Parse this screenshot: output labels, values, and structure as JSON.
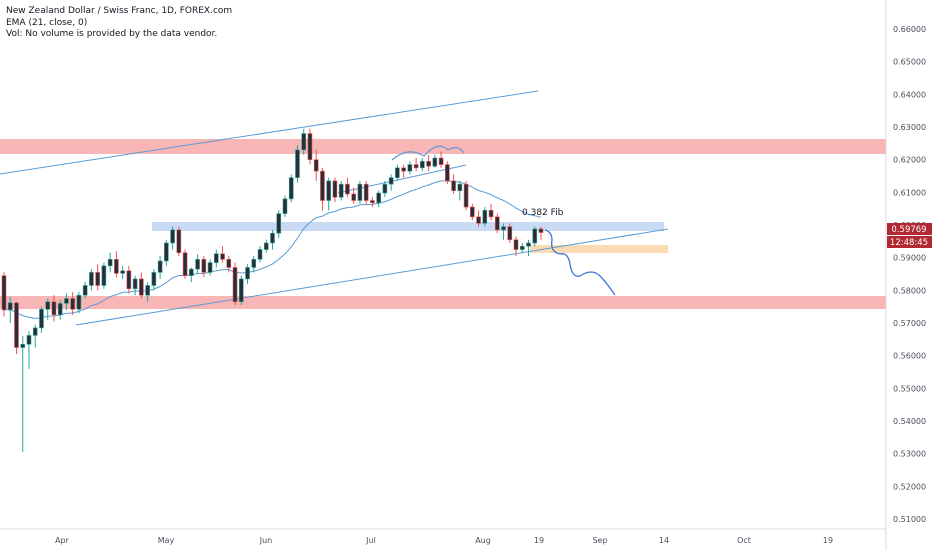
{
  "legend": {
    "title": "New Zealand Dollar / Swiss Franc, 1D, FOREX.com",
    "ema": "EMA (21, close, 0)",
    "vol": "Vol: No volume is provided by the data vendor."
  },
  "colors": {
    "up": "#26a69a",
    "down": "#ef5350",
    "candle_body": "#2a2e39",
    "red_zone": "#f7a9a9",
    "blue_zone": "#c3d6f3",
    "orange_zone": "#fad9b0",
    "line": "#5b9bd5",
    "price_tag": "#b22833"
  },
  "chart_data": {
    "type": "candlestick",
    "y_ticks": [
      "0.66000",
      "0.65000",
      "0.64000",
      "0.63000",
      "0.62000",
      "0.61000",
      "0.60000",
      "0.59000",
      "0.58000",
      "0.57000",
      "0.56000",
      "0.55000",
      "0.54000",
      "0.53000",
      "0.52000",
      "0.51000"
    ],
    "x_ticks": [
      "Apr",
      "May",
      "Jun",
      "Jul",
      "Aug",
      "19",
      "Sep",
      "14",
      "Oct",
      "19"
    ],
    "ylim": [
      0.5065,
      0.6675
    ],
    "last_price": "0.59769",
    "countdown": "12:48:45",
    "annotation": "0.382 Fib",
    "ema_period": 21,
    "candles": [
      [
        0.5845,
        0.5856,
        0.572,
        0.574
      ],
      [
        0.574,
        0.578,
        0.57,
        0.5762
      ],
      [
        0.5762,
        0.5765,
        0.5605,
        0.5625
      ],
      [
        0.5625,
        0.566,
        0.5305,
        0.5635
      ],
      [
        0.5635,
        0.5675,
        0.556,
        0.5662
      ],
      [
        0.5662,
        0.5695,
        0.5625,
        0.5685
      ],
      [
        0.5685,
        0.575,
        0.567,
        0.5742
      ],
      [
        0.5742,
        0.5775,
        0.571,
        0.5765
      ],
      [
        0.5765,
        0.5785,
        0.5705,
        0.5725
      ],
      [
        0.5725,
        0.577,
        0.571,
        0.576
      ],
      [
        0.576,
        0.579,
        0.574,
        0.5775
      ],
      [
        0.5775,
        0.5795,
        0.5725,
        0.5742
      ],
      [
        0.5742,
        0.5795,
        0.573,
        0.5785
      ],
      [
        0.5785,
        0.5825,
        0.5775,
        0.5815
      ],
      [
        0.5815,
        0.5865,
        0.58,
        0.5855
      ],
      [
        0.5855,
        0.588,
        0.58,
        0.5815
      ],
      [
        0.5815,
        0.5885,
        0.5805,
        0.5875
      ],
      [
        0.5875,
        0.5915,
        0.5855,
        0.5895
      ],
      [
        0.5895,
        0.592,
        0.584,
        0.5852
      ],
      [
        0.5852,
        0.5875,
        0.5835,
        0.586
      ],
      [
        0.586,
        0.5875,
        0.579,
        0.5805
      ],
      [
        0.5805,
        0.5845,
        0.5785,
        0.5835
      ],
      [
        0.5835,
        0.5855,
        0.5775,
        0.5785
      ],
      [
        0.5785,
        0.5825,
        0.5765,
        0.5815
      ],
      [
        0.5815,
        0.5865,
        0.58,
        0.5855
      ],
      [
        0.5855,
        0.5905,
        0.5835,
        0.589
      ],
      [
        0.589,
        0.5955,
        0.5875,
        0.5945
      ],
      [
        0.5945,
        0.5995,
        0.5925,
        0.5985
      ],
      [
        0.5985,
        0.5995,
        0.5905,
        0.5915
      ],
      [
        0.5915,
        0.5925,
        0.5835,
        0.5845
      ],
      [
        0.5845,
        0.587,
        0.5825,
        0.5865
      ],
      [
        0.5865,
        0.591,
        0.585,
        0.5895
      ],
      [
        0.5895,
        0.5905,
        0.584,
        0.5855
      ],
      [
        0.5855,
        0.5895,
        0.5845,
        0.5885
      ],
      [
        0.5885,
        0.5925,
        0.587,
        0.5912
      ],
      [
        0.5912,
        0.5935,
        0.5885,
        0.5895
      ],
      [
        0.5895,
        0.5905,
        0.5855,
        0.587
      ],
      [
        0.587,
        0.5885,
        0.5755,
        0.5765
      ],
      [
        0.5765,
        0.5845,
        0.5755,
        0.5835
      ],
      [
        0.5835,
        0.588,
        0.582,
        0.587
      ],
      [
        0.587,
        0.5905,
        0.5855,
        0.5895
      ],
      [
        0.5895,
        0.5935,
        0.5885,
        0.5925
      ],
      [
        0.5925,
        0.5955,
        0.5915,
        0.5945
      ],
      [
        0.5945,
        0.5985,
        0.5925,
        0.5975
      ],
      [
        0.5975,
        0.6045,
        0.596,
        0.6035
      ],
      [
        0.6035,
        0.609,
        0.6025,
        0.608
      ],
      [
        0.608,
        0.6155,
        0.607,
        0.6145
      ],
      [
        0.6145,
        0.6245,
        0.613,
        0.623
      ],
      [
        0.623,
        0.6295,
        0.6215,
        0.628
      ],
      [
        0.628,
        0.6295,
        0.6185,
        0.62
      ],
      [
        0.62,
        0.623,
        0.6135,
        0.6165
      ],
      [
        0.6165,
        0.6175,
        0.6045,
        0.6075
      ],
      [
        0.6075,
        0.6145,
        0.6045,
        0.6135
      ],
      [
        0.6135,
        0.6145,
        0.607,
        0.6085
      ],
      [
        0.6085,
        0.6135,
        0.6075,
        0.6125
      ],
      [
        0.6125,
        0.6145,
        0.6085,
        0.6095
      ],
      [
        0.6095,
        0.6115,
        0.6065,
        0.6075
      ],
      [
        0.6075,
        0.6135,
        0.6065,
        0.6125
      ],
      [
        0.6125,
        0.6135,
        0.6065,
        0.6075
      ],
      [
        0.6075,
        0.6085,
        0.6055,
        0.6068
      ],
      [
        0.6068,
        0.6105,
        0.6055,
        0.6098
      ],
      [
        0.6098,
        0.6135,
        0.6085,
        0.6125
      ],
      [
        0.6125,
        0.6155,
        0.6105,
        0.6145
      ],
      [
        0.6145,
        0.6185,
        0.6135,
        0.6175
      ],
      [
        0.6175,
        0.6185,
        0.6145,
        0.6165
      ],
      [
        0.6165,
        0.6195,
        0.6155,
        0.6185
      ],
      [
        0.6185,
        0.6205,
        0.6165,
        0.6175
      ],
      [
        0.6175,
        0.6205,
        0.6165,
        0.6195
      ],
      [
        0.6195,
        0.6215,
        0.6165,
        0.618
      ],
      [
        0.618,
        0.6215,
        0.6175,
        0.6205
      ],
      [
        0.6205,
        0.6225,
        0.6175,
        0.6185
      ],
      [
        0.6185,
        0.6195,
        0.6125,
        0.6135
      ],
      [
        0.6135,
        0.6155,
        0.6095,
        0.6105
      ],
      [
        0.6105,
        0.6135,
        0.6075,
        0.6125
      ],
      [
        0.6125,
        0.6135,
        0.6045,
        0.6055
      ],
      [
        0.6055,
        0.6065,
        0.6015,
        0.6025
      ],
      [
        0.6025,
        0.6045,
        0.5995,
        0.6005
      ],
      [
        0.6005,
        0.6055,
        0.5995,
        0.6045
      ],
      [
        0.6045,
        0.6065,
        0.6015,
        0.6025
      ],
      [
        0.6025,
        0.6035,
        0.5975,
        0.5985
      ],
      [
        0.5985,
        0.6005,
        0.5955,
        0.5995
      ],
      [
        0.5995,
        0.6005,
        0.5945,
        0.5955
      ],
      [
        0.5955,
        0.5965,
        0.5905,
        0.5925
      ],
      [
        0.5925,
        0.5945,
        0.5915,
        0.5935
      ],
      [
        0.5935,
        0.5955,
        0.5905,
        0.5945
      ],
      [
        0.5945,
        0.5995,
        0.5935,
        0.5988
      ],
      [
        0.5988,
        0.5995,
        0.5955,
        0.5977
      ]
    ],
    "horizontal_zones": [
      {
        "name": "resistance-zone",
        "range": [
          0.6215,
          0.6258
        ]
      },
      {
        "name": "fib-zone",
        "range": [
          0.5982,
          0.5997
        ]
      },
      {
        "name": "target-zone",
        "range": [
          0.5755,
          0.5775
        ]
      },
      {
        "name": "support-zone",
        "range": [
          0.5911,
          0.5921
        ]
      }
    ]
  }
}
